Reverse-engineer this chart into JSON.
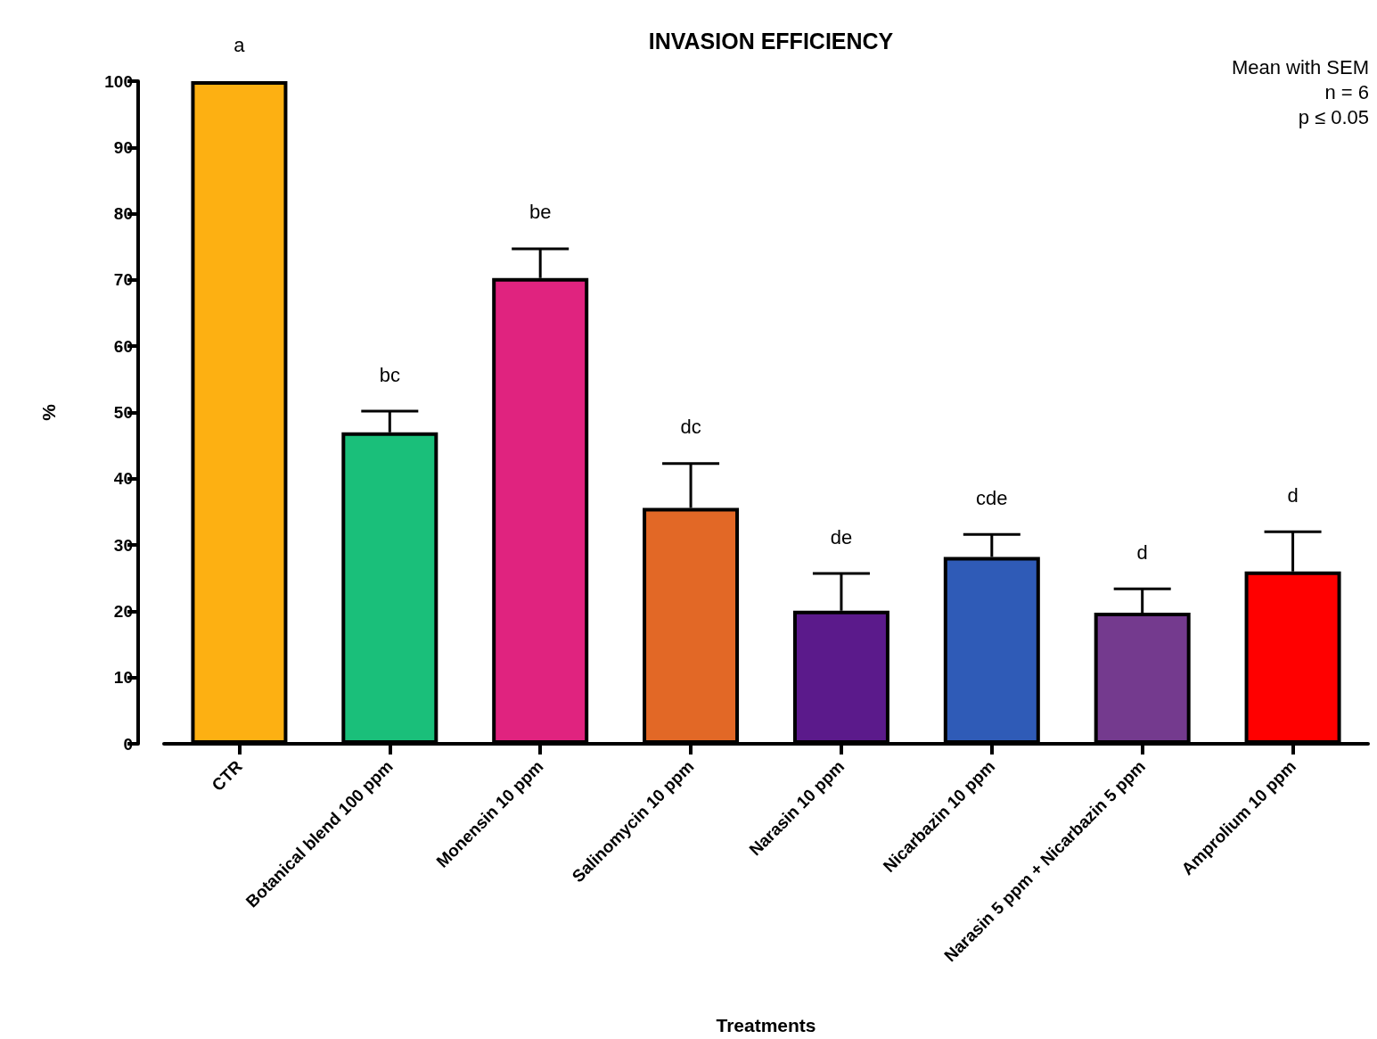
{
  "chart_data": {
    "type": "bar",
    "title": "INVASION EFFICIENCY",
    "xlabel": "Treatments",
    "ylabel": "%",
    "categories": [
      "CTR",
      "Botanical blend 100 ppm",
      "Monensin 10 ppm",
      "Salinomycin 10 ppm",
      "Narasin 10 ppm",
      "Nicarbazin 10 ppm",
      "Narasin 5 ppm + Nicarbazin 5 ppm",
      "Amprolium 10 ppm"
    ],
    "values": [
      100,
      47,
      70.3,
      35.6,
      20.1,
      28.2,
      19.8,
      26
    ],
    "errors": [
      null,
      [
        47,
        50.2
      ],
      [
        70.3,
        74.7
      ],
      [
        35.6,
        42.3
      ],
      [
        20.1,
        25.7
      ],
      [
        28.2,
        31.6
      ],
      [
        19.8,
        23.4
      ],
      [
        26,
        32
      ]
    ],
    "colors": [
      "#fdb012",
      "#1abf7a",
      "#e0237f",
      "#e26826",
      "#5b1a8b",
      "#2f5bb7",
      "#743a8e",
      "#ff0000"
    ],
    "ylim": [
      0,
      100
    ],
    "yticks": [
      0,
      10,
      20,
      30,
      40,
      50,
      60,
      70,
      80,
      90,
      100
    ],
    "grid": false,
    "annotations": [
      {
        "text": "a",
        "x": "CTR",
        "y": 100
      },
      {
        "text": "bc",
        "x": "Botanical blend 100 ppm",
        "y": 50.2
      },
      {
        "text": "be",
        "x": "Monensin 10 ppm",
        "y": 74.7
      },
      {
        "text": "dc",
        "x": "Salinomycin 10 ppm",
        "y": 42.3
      },
      {
        "text": "de",
        "x": "Narasin 10 ppm",
        "y": 25.7
      },
      {
        "text": "cde",
        "x": "Nicarbazin 10 ppm",
        "y": 31.6
      },
      {
        "text": "d",
        "x": "Narasin 5 ppm + Nicarbazin 5 ppm",
        "y": 23.4
      },
      {
        "text": "d",
        "x": "Amprolium 10 ppm",
        "y": 32
      },
      "Mean with SEM",
      "n = 6",
      "p ≤ 0.05"
    ]
  }
}
